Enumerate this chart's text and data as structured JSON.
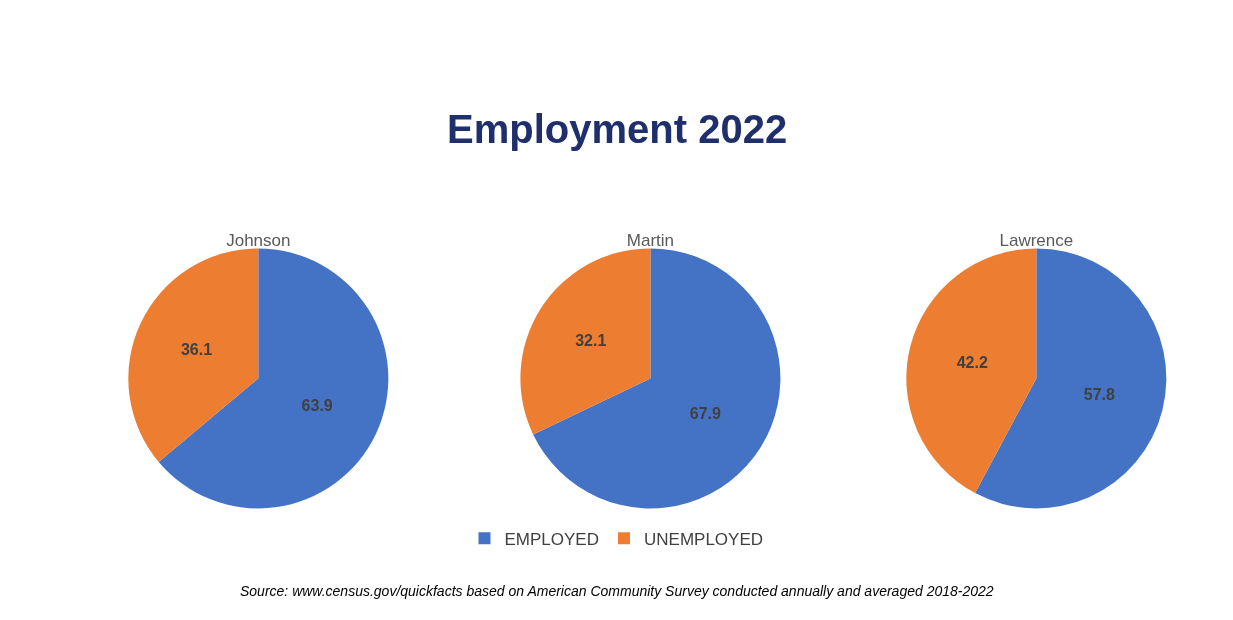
{
  "chart_data": [
    {
      "type": "pie",
      "title": "Johnson",
      "categories": [
        "EMPLOYED",
        "UNEMPLOYED"
      ],
      "values": [
        63.9,
        36.1
      ],
      "colors": [
        "#4472c4",
        "#ed7d31"
      ],
      "data_labels": true,
      "legend": "bottom",
      "annotations": [
        "Employment 2022",
        "Source: www.census.gov/quickfacts based on American Community Survey conducted annually and averaged 2018-2022"
      ]
    },
    {
      "type": "pie",
      "title": "Martin",
      "categories": [
        null,
        null
      ],
      "values": [
        67.9,
        32.1
      ],
      "colors": [
        "#4472c4",
        "#ed7d31"
      ],
      "data_labels": true
    },
    {
      "type": "pie",
      "title": "Lawrence",
      "categories": [
        null,
        null
      ],
      "values": [
        57.8,
        42.2
      ],
      "colors": [
        "#4472c4",
        "#ed7d31"
      ],
      "data_labels": true
    }
  ]
}
